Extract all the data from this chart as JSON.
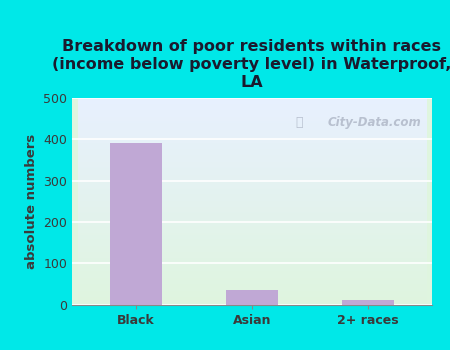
{
  "categories": [
    "Black",
    "Asian",
    "2+ races"
  ],
  "values": [
    390,
    35,
    10
  ],
  "bar_color": "#c0a8d5",
  "title": "Breakdown of poor residents within races\n(income below poverty level) in Waterproof,\nLA",
  "ylabel": "absolute numbers",
  "ylim": [
    0,
    500
  ],
  "yticks": [
    0,
    100,
    200,
    300,
    400,
    500
  ],
  "background_color": "#00e8e8",
  "plot_bg_top": "#e8f0ff",
  "plot_bg_bottom": "#dff5df",
  "grid_color": "#ffffff",
  "title_color": "#1a1a2e",
  "axis_label_color": "#3a3a3a",
  "tick_label_color": "#3a3a3a",
  "watermark": "City-Data.com",
  "title_fontsize": 11.5,
  "label_fontsize": 9.5,
  "tick_fontsize": 9
}
